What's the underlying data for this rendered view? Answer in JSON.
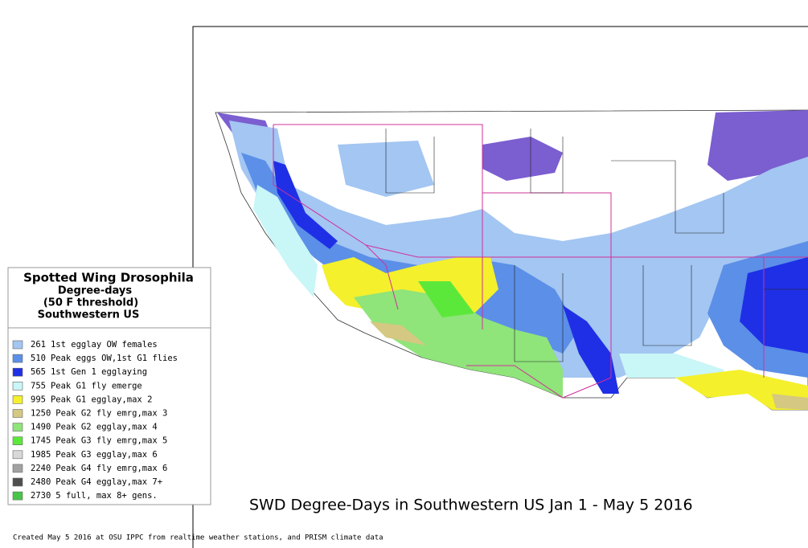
{
  "legend": {
    "title": "Spotted Wing Drosophila",
    "subtitle_lines": [
      "Degree-days",
      "(50 F threshold)",
      "Southwestern US"
    ],
    "items": [
      {
        "value": 261,
        "label": "1st egglay OW females",
        "color": "#a3c6f2"
      },
      {
        "value": 510,
        "label": "Peak eggs OW,1st G1 flies",
        "color": "#5b8fe8"
      },
      {
        "value": 565,
        "label": "1st Gen 1 egglaying",
        "color": "#1f2fe6"
      },
      {
        "value": 755,
        "label": "Peak G1 fly emerge",
        "color": "#c9f6f6"
      },
      {
        "value": 995,
        "label": "Peak G1 egglay,max 2",
        "color": "#f4f02c"
      },
      {
        "value": 1250,
        "label": "Peak G2 fly emrg,max 3",
        "color": "#d4c882"
      },
      {
        "value": 1490,
        "label": "Peak G2 egglay,max 4",
        "color": "#8fe47a"
      },
      {
        "value": 1745,
        "label": "Peak G3 fly emrg,max 5",
        "color": "#5ce83a"
      },
      {
        "value": 1985,
        "label": "Peak G3 egglay,max 6",
        "color": "#d8d8d8"
      },
      {
        "value": 2240,
        "label": "Peak G4 fly emrg,max 6",
        "color": "#a2a2a2"
      },
      {
        "value": 2480,
        "label": "Peak G4 egglay,max 7+",
        "color": "#4e4e4e"
      },
      {
        "value": 2730,
        "label": "5 full, max 8+ gens.",
        "color": "#48c448"
      }
    ]
  },
  "map_title": "SWD Degree-Days in Southwestern US Jan 1 - May 5 2016",
  "footer": "Created May 5 2016 at OSU IPPC from  realtime weather stations, and PRISM climate data"
}
